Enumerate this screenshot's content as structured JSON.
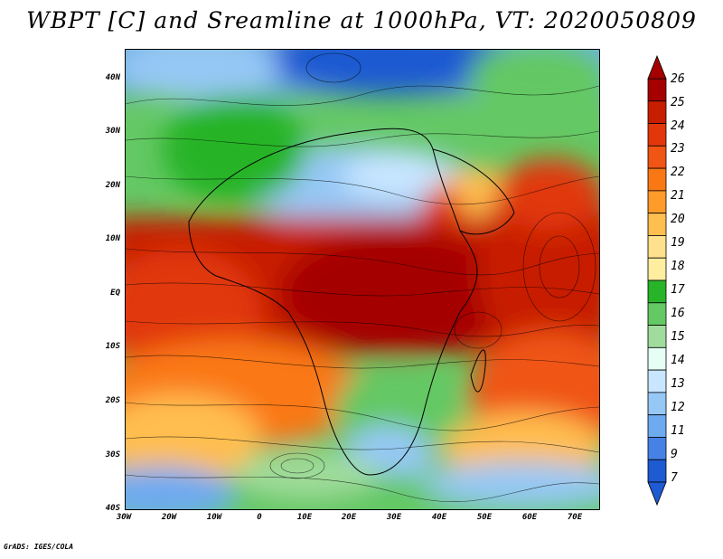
{
  "title": "WBPT [C] and Sreamline at 1000hPa, VT: 2020050809",
  "footer": "GrADS: IGES/COLA",
  "axes": {
    "lat_labels": [
      "40N",
      "30N",
      "20N",
      "10N",
      "EQ",
      "10S",
      "20S",
      "30S",
      "40S"
    ],
    "lon_labels": [
      "30W",
      "20W",
      "10W",
      "0",
      "10E",
      "20E",
      "30E",
      "40E",
      "50E",
      "60E",
      "70E"
    ]
  },
  "colorbar": {
    "labels": [
      "26",
      "25",
      "24",
      "23",
      "22",
      "21",
      "20",
      "19",
      "18",
      "17",
      "16",
      "15",
      "14",
      "13",
      "12",
      "11",
      "9",
      "7"
    ],
    "colors": [
      "#a50000",
      "#c81e00",
      "#e1370a",
      "#f05514",
      "#fa7814",
      "#ff9b28",
      "#ffbe50",
      "#ffe08c",
      "#ffeea0",
      "#28b428",
      "#64c864",
      "#a0dc9b",
      "#e6fff5",
      "#c8e6ff",
      "#96c8f5",
      "#6eaaf0",
      "#4682e6",
      "#1e5ad2"
    ]
  },
  "chart_data": {
    "type": "heatmap",
    "title": "WBPT [C] and Sreamline at 1000hPa, VT: 2020050809",
    "variable": "Wet-bulb potential temperature",
    "units": "C",
    "level": "1000hPa",
    "valid_time": "2020050809",
    "lon_range": [
      -30,
      75
    ],
    "lat_range": [
      -40,
      45
    ],
    "color_levels": [
      7,
      9,
      11,
      12,
      13,
      14,
      15,
      16,
      17,
      18,
      19,
      20,
      21,
      22,
      23,
      24,
      25,
      26
    ],
    "overlay": "streamlines"
  }
}
